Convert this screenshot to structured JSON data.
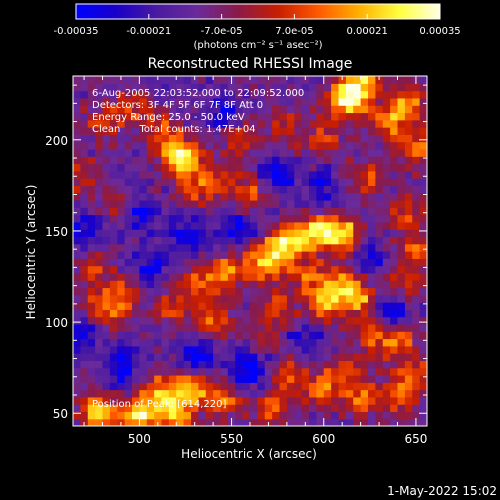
{
  "colorbar": {
    "min": -0.00035,
    "max": 0.00035,
    "tick_labels": [
      "-0.00035",
      "-0.00021",
      "-7.0e-05",
      "7.0e-05",
      "0.00021",
      "0.00035"
    ],
    "tick_values": [
      -0.00035,
      -0.00021,
      -7e-05,
      7e-05,
      0.00021,
      0.00035
    ],
    "unit_label": "(photons cm⁻² s⁻¹ asec⁻²)",
    "colors": [
      "#0000ff",
      "#1a00c8",
      "#4a1aa0",
      "#6a2a9a",
      "#8a1a4a",
      "#c81e00",
      "#ff5a00",
      "#ffb000",
      "#ffff40",
      "#ffffe6"
    ]
  },
  "chart_data": {
    "type": "heatmap",
    "title": "Reconstructed RHESSI Image",
    "xlabel": "Heliocentric X (arcsec)",
    "ylabel": "Heliocentric Y (arcsec)",
    "xlim": [
      464,
      656
    ],
    "ylim": [
      43,
      235
    ],
    "x_ticks": [
      500,
      550,
      600,
      650
    ],
    "y_ticks": [
      50,
      100,
      150,
      200
    ],
    "x_tick_labels": [
      "500",
      "550",
      "600",
      "650"
    ],
    "y_tick_labels": [
      "50",
      "100",
      "150",
      "200"
    ],
    "grid": false,
    "info_lines": [
      "6-Aug-2005 22:03:52.000 to 22:09:52.000",
      "Detectors: 3F 4F 5F 6F 7F 8F  Att 0",
      "Energy Range: 25.0 - 50.0 keV",
      "Clean      Total counts: 1.47E+04"
    ],
    "peak_text": "Position of Peak: [614,220]",
    "peak": [
      614,
      220
    ],
    "bright_sources": [
      {
        "x": 478,
        "y": 52,
        "v": 0.95
      },
      {
        "x": 500,
        "y": 48,
        "v": 0.98
      },
      {
        "x": 520,
        "y": 50,
        "v": 0.85
      },
      {
        "x": 510,
        "y": 62,
        "v": 0.7
      },
      {
        "x": 528,
        "y": 64,
        "v": 0.75
      },
      {
        "x": 545,
        "y": 58,
        "v": 0.65
      },
      {
        "x": 572,
        "y": 52,
        "v": 0.6
      },
      {
        "x": 582,
        "y": 72,
        "v": 0.55
      },
      {
        "x": 600,
        "y": 63,
        "v": 0.6
      },
      {
        "x": 620,
        "y": 58,
        "v": 0.65
      },
      {
        "x": 628,
        "y": 92,
        "v": 0.55
      },
      {
        "x": 612,
        "y": 75,
        "v": 0.5
      },
      {
        "x": 600,
        "y": 110,
        "v": 0.75
      },
      {
        "x": 618,
        "y": 113,
        "v": 0.75
      },
      {
        "x": 610,
        "y": 122,
        "v": 0.65
      },
      {
        "x": 592,
        "y": 125,
        "v": 0.55
      },
      {
        "x": 575,
        "y": 135,
        "v": 0.6
      },
      {
        "x": 562,
        "y": 132,
        "v": 0.6
      },
      {
        "x": 545,
        "y": 128,
        "v": 0.65
      },
      {
        "x": 530,
        "y": 120,
        "v": 0.55
      },
      {
        "x": 540,
        "y": 102,
        "v": 0.6
      },
      {
        "x": 518,
        "y": 108,
        "v": 0.45
      },
      {
        "x": 480,
        "y": 108,
        "v": 0.65
      },
      {
        "x": 492,
        "y": 115,
        "v": 0.55
      },
      {
        "x": 475,
        "y": 130,
        "v": 0.45
      },
      {
        "x": 600,
        "y": 150,
        "v": 0.75
      },
      {
        "x": 612,
        "y": 148,
        "v": 0.8
      },
      {
        "x": 588,
        "y": 147,
        "v": 0.7
      },
      {
        "x": 576,
        "y": 143,
        "v": 0.6
      },
      {
        "x": 624,
        "y": 180,
        "v": 0.5
      },
      {
        "x": 644,
        "y": 160,
        "v": 0.55
      },
      {
        "x": 650,
        "y": 140,
        "v": 0.55
      },
      {
        "x": 645,
        "y": 122,
        "v": 0.5
      },
      {
        "x": 642,
        "y": 92,
        "v": 0.55
      },
      {
        "x": 648,
        "y": 72,
        "v": 0.6
      },
      {
        "x": 640,
        "y": 58,
        "v": 0.5
      },
      {
        "x": 560,
        "y": 170,
        "v": 0.55
      },
      {
        "x": 545,
        "y": 178,
        "v": 0.45
      },
      {
        "x": 532,
        "y": 172,
        "v": 0.45
      },
      {
        "x": 520,
        "y": 192,
        "v": 0.7
      },
      {
        "x": 527,
        "y": 187,
        "v": 0.65
      },
      {
        "x": 495,
        "y": 218,
        "v": 0.5
      },
      {
        "x": 512,
        "y": 205,
        "v": 0.55
      },
      {
        "x": 480,
        "y": 210,
        "v": 0.45
      },
      {
        "x": 555,
        "y": 200,
        "v": 0.5
      },
      {
        "x": 580,
        "y": 208,
        "v": 0.5
      },
      {
        "x": 600,
        "y": 200,
        "v": 0.55
      },
      {
        "x": 612,
        "y": 222,
        "v": 1.0
      },
      {
        "x": 620,
        "y": 230,
        "v": 0.92
      },
      {
        "x": 636,
        "y": 210,
        "v": 0.75
      },
      {
        "x": 646,
        "y": 222,
        "v": 0.7
      },
      {
        "x": 650,
        "y": 195,
        "v": 0.6
      },
      {
        "x": 490,
        "y": 165,
        "v": 0.4
      },
      {
        "x": 470,
        "y": 180,
        "v": 0.45
      },
      {
        "x": 568,
        "y": 92,
        "v": 0.4
      },
      {
        "x": 575,
        "y": 110,
        "v": 0.45
      }
    ],
    "dim_regions": [
      {
        "x": 560,
        "y": 75,
        "v": -0.7
      },
      {
        "x": 532,
        "y": 82,
        "v": -0.6
      },
      {
        "x": 505,
        "y": 130,
        "v": -0.5
      },
      {
        "x": 500,
        "y": 160,
        "v": -0.55
      },
      {
        "x": 525,
        "y": 148,
        "v": -0.5
      },
      {
        "x": 555,
        "y": 150,
        "v": -0.6
      },
      {
        "x": 575,
        "y": 180,
        "v": -0.55
      },
      {
        "x": 490,
        "y": 75,
        "v": -0.6
      },
      {
        "x": 590,
        "y": 90,
        "v": -0.5
      },
      {
        "x": 625,
        "y": 135,
        "v": -0.45
      },
      {
        "x": 638,
        "y": 105,
        "v": -0.6
      },
      {
        "x": 600,
        "y": 175,
        "v": -0.4
      },
      {
        "x": 545,
        "y": 215,
        "v": -0.45
      },
      {
        "x": 470,
        "y": 150,
        "v": -0.4
      },
      {
        "x": 470,
        "y": 95,
        "v": -0.45
      }
    ]
  },
  "footer": {
    "date_stamp": "1-May-2022 15:02"
  }
}
